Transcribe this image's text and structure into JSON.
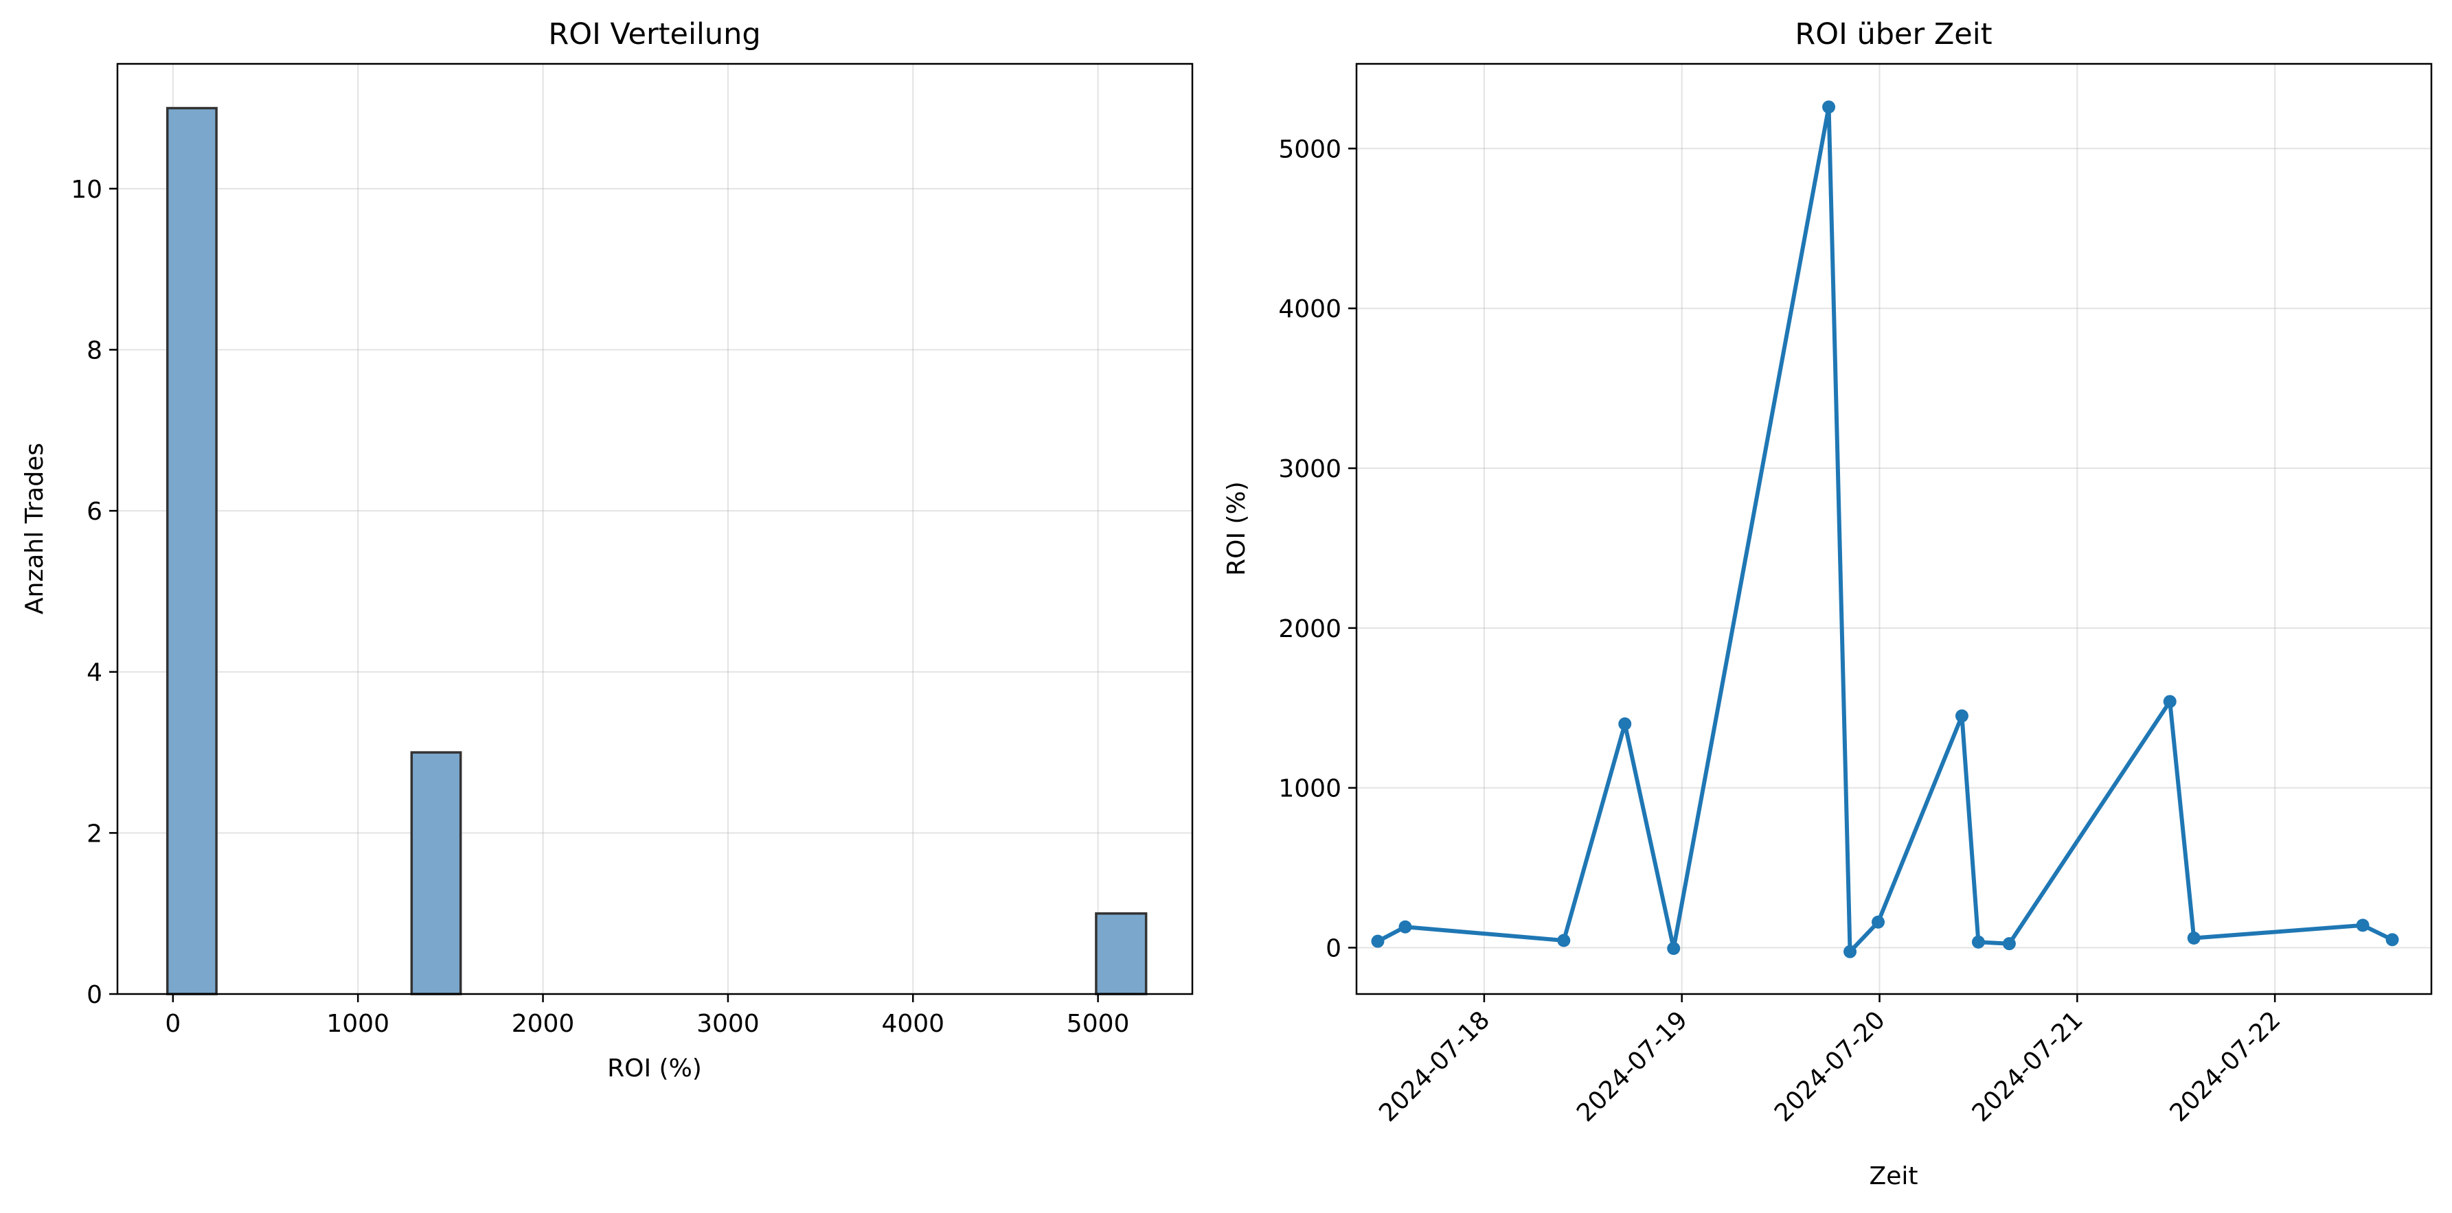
{
  "chart_data": [
    {
      "type": "bar",
      "title": "ROI Verteilung",
      "xlabel": "ROI (%)",
      "ylabel": "Anzahl Trades",
      "grid": true,
      "xlim": [
        -300,
        5510
      ],
      "ylim": [
        0,
        11.55
      ],
      "xticks": [
        0,
        1000,
        2000,
        3000,
        4000,
        5000
      ],
      "yticks": [
        0,
        2,
        4,
        6,
        8,
        10
      ],
      "bins": [
        {
          "from": -30,
          "to": 235,
          "count": 11
        },
        {
          "from": 1290,
          "to": 1555,
          "count": 3
        },
        {
          "from": 4990,
          "to": 5260,
          "count": 1
        }
      ],
      "bar_color": "#7ba7cc",
      "edge_color": "#333333"
    },
    {
      "type": "line",
      "title": "ROI über Zeit",
      "xlabel": "Zeit",
      "ylabel": "ROI (%)",
      "grid": true,
      "xlim": [
        "2024-07-17 08:30",
        "2024-07-22 19:00"
      ],
      "ylim": [
        -290,
        5530
      ],
      "xticks": [
        "2024-07-18",
        "2024-07-19",
        "2024-07-20",
        "2024-07-21",
        "2024-07-22"
      ],
      "yticks": [
        0,
        1000,
        2000,
        3000,
        4000,
        5000
      ],
      "line_color": "#1f77b4",
      "points": [
        {
          "x": "2024-07-17 11:05",
          "y": 40
        },
        {
          "x": "2024-07-17 14:25",
          "y": 130
        },
        {
          "x": "2024-07-18 09:40",
          "y": 45
        },
        {
          "x": "2024-07-18 17:05",
          "y": 1400
        },
        {
          "x": "2024-07-18 23:00",
          "y": -5
        },
        {
          "x": "2024-07-19 17:50",
          "y": 5260
        },
        {
          "x": "2024-07-19 20:25",
          "y": -25
        },
        {
          "x": "2024-07-19 23:50",
          "y": 160
        },
        {
          "x": "2024-07-20 10:00",
          "y": 1450
        },
        {
          "x": "2024-07-20 12:00",
          "y": 35
        },
        {
          "x": "2024-07-20 15:45",
          "y": 25
        },
        {
          "x": "2024-07-21 11:15",
          "y": 1540
        },
        {
          "x": "2024-07-21 14:10",
          "y": 60
        },
        {
          "x": "2024-07-22 10:40",
          "y": 140
        },
        {
          "x": "2024-07-22 14:15",
          "y": 50
        }
      ]
    }
  ]
}
